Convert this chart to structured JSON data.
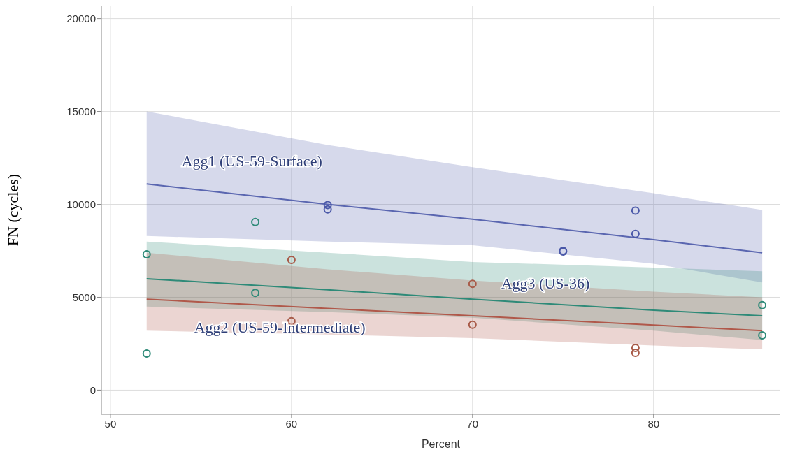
{
  "chart_data": {
    "type": "scatter",
    "xlabel": "Percent",
    "ylabel": "FN (cycles)",
    "xlim": [
      49.5,
      87
    ],
    "xticks": [
      50,
      60,
      70,
      80
    ],
    "ylim": [
      -1300,
      20700
    ],
    "yticks": [
      0,
      5000,
      10000,
      15000,
      20000
    ],
    "grid": true,
    "series": [
      {
        "type": "line",
        "name": "Agg1 (US-59-Surface)",
        "color": "#5a66b0",
        "marker": "none",
        "x": [
          52,
          62,
          70,
          80,
          86
        ],
        "values": [
          11100,
          10000,
          9200,
          8100,
          7400
        ],
        "lower": [
          8300,
          8000,
          7800,
          6800,
          5800
        ],
        "upper": [
          15000,
          13200,
          12000,
          10600,
          9700
        ]
      },
      {
        "type": "line",
        "name": "Agg3 (US-36)",
        "color": "#2e8a78",
        "marker": "none",
        "x": [
          52,
          62,
          70,
          80,
          86
        ],
        "values": [
          6000,
          5400,
          4900,
          4300,
          4000
        ],
        "lower": [
          4500,
          4200,
          3900,
          3200,
          2700
        ],
        "upper": [
          8000,
          7400,
          6900,
          6600,
          6400
        ]
      },
      {
        "type": "line",
        "name": "Agg2 (US-59-Intermediate)",
        "color": "#b0584a",
        "marker": "none",
        "x": [
          52,
          62,
          70,
          80,
          86
        ],
        "values": [
          4900,
          4400,
          4000,
          3500,
          3200
        ],
        "lower": [
          3200,
          3000,
          2800,
          2400,
          2200
        ],
        "upper": [
          7400,
          6500,
          5900,
          5300,
          5000
        ]
      },
      {
        "color": "#4a58a8",
        "marker": "circle",
        "x": [
          62,
          62,
          75,
          75,
          79,
          79
        ],
        "values": [
          9960,
          9730,
          7500,
          7460,
          9660,
          8410
        ]
      },
      {
        "color": "#2e8a78",
        "marker": "circle",
        "x": [
          52,
          52,
          58,
          58,
          86,
          86
        ],
        "values": [
          7310,
          1970,
          9050,
          5230,
          4580,
          2950
        ]
      },
      {
        "color": "#a85a48",
        "marker": "circle",
        "x": [
          60,
          60,
          70,
          70,
          79,
          79
        ],
        "values": [
          7010,
          3710,
          5720,
          3520,
          2270,
          2010
        ]
      }
    ]
  }
}
